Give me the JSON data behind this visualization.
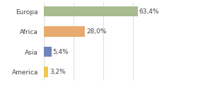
{
  "categories": [
    "Europa",
    "Africa",
    "Asia",
    "America"
  ],
  "values": [
    63.4,
    28.0,
    5.4,
    3.2
  ],
  "bar_colors": [
    "#a8bc8f",
    "#e8aa6e",
    "#6e85b8",
    "#f0c84a"
  ],
  "labels": [
    "63,4%",
    "28,0%",
    "5,4%",
    "3,2%"
  ],
  "xlim": [
    0,
    80
  ],
  "background_color": "#ffffff",
  "label_fontsize": 6.5,
  "tick_fontsize": 6.5,
  "bar_height": 0.52
}
